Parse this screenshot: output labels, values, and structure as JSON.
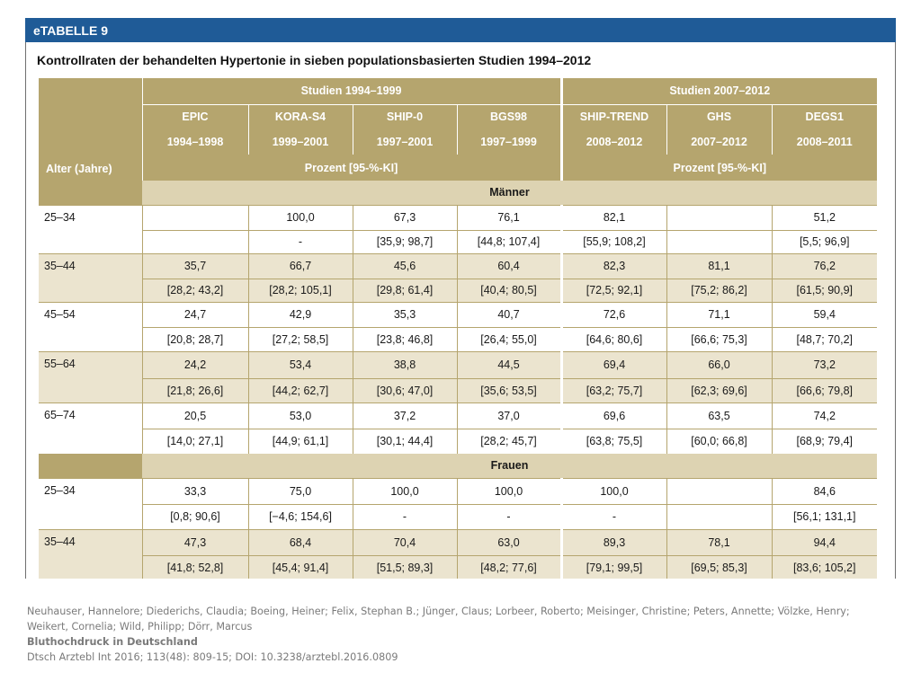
{
  "banner": "eTABELLE 9",
  "title": "Kontrollraten der behandelten Hypertonie in sieben populationsbasierten Studien 1994–2012",
  "header": {
    "age_label": "Alter (Jahre)",
    "group_1": "Studien 1994–1999",
    "group_2": "Studien 2007–2012",
    "unit": "Prozent [95-%-KI]",
    "studies": [
      "EPIC",
      "KORA-S4",
      "SHIP-0",
      "BGS98",
      "SHIP-TREND",
      "GHS",
      "DEGS1"
    ],
    "years": [
      "1994–1998",
      "1999–2001",
      "1997–2001",
      "1997–1999",
      "2008–2012",
      "2007–2012",
      "2008–2011"
    ]
  },
  "sections": [
    {
      "label": "Männer",
      "rows": [
        {
          "age": "25–34",
          "values": [
            "",
            "100,0",
            "67,3",
            "76,1",
            "82,1",
            "",
            "51,2"
          ],
          "ci": [
            "",
            "-",
            "[35,9; 98,7]",
            "[44,8; 107,4]",
            "[55,9; 108,2]",
            "",
            "[5,5; 96,9]"
          ]
        },
        {
          "age": "35–44",
          "values": [
            "35,7",
            "66,7",
            "45,6",
            "60,4",
            "82,3",
            "81,1",
            "76,2"
          ],
          "ci": [
            "[28,2; 43,2]",
            "[28,2; 105,1]",
            "[29,8; 61,4]",
            "[40,4; 80,5]",
            "[72,5; 92,1]",
            "[75,2; 86,2]",
            "[61,5; 90,9]"
          ]
        },
        {
          "age": "45–54",
          "values": [
            "24,7",
            "42,9",
            "35,3",
            "40,7",
            "72,6",
            "71,1",
            "59,4"
          ],
          "ci": [
            "[20,8; 28,7]",
            "[27,2; 58,5]",
            "[23,8; 46,8]",
            "[26,4; 55,0]",
            "[64,6; 80,6]",
            "[66,6; 75,3]",
            "[48,7; 70,2]"
          ]
        },
        {
          "age": "55–64",
          "values": [
            "24,2",
            "53,4",
            "38,8",
            "44,5",
            "69,4",
            "66,0",
            "73,2"
          ],
          "ci": [
            "[21,8; 26,6]",
            "[44,2; 62,7]",
            "[30,6; 47,0]",
            "[35,6; 53,5]",
            "[63,2; 75,7]",
            "[62,3; 69,6]",
            "[66,6; 79,8]"
          ]
        },
        {
          "age": "65–74",
          "values": [
            "20,5",
            "53,0",
            "37,2",
            "37,0",
            "69,6",
            "63,5",
            "74,2"
          ],
          "ci": [
            "[14,0; 27,1]",
            "[44,9; 61,1]",
            "[30,1; 44,4]",
            "[28,2; 45,7]",
            "[63,8; 75,5]",
            "[60,0; 66,8]",
            "[68,9; 79,4]"
          ]
        }
      ]
    },
    {
      "label": "Frauen",
      "rows": [
        {
          "age": "25–34",
          "values": [
            "33,3",
            "75,0",
            "100,0",
            "100,0",
            "100,0",
            "",
            "84,6"
          ],
          "ci": [
            "[0,8; 90,6]",
            "[−4,6; 154,6]",
            "-",
            "-",
            "-",
            "",
            "[56,1; 131,1]"
          ]
        },
        {
          "age": "35–44",
          "values": [
            "47,3",
            "68,4",
            "70,4",
            "63,0",
            "89,3",
            "78,1",
            "94,4"
          ],
          "ci": [
            "[41,8; 52,8]",
            "[45,4; 91,4]",
            "[51,5; 89,3]",
            "[48,2; 77,6]",
            "[79,1; 99,5]",
            "[69,5; 85,3]",
            "[83,6; 105,2]"
          ]
        }
      ]
    }
  ],
  "citation": {
    "authors": "Neuhauser, Hannelore; Diederichs, Claudia; Boeing, Heiner; Felix, Stephan B.; Jünger, Claus; Lorbeer, Roberto; Meisinger, Christine; Peters, Annette; Völzke, Henry; Weikert, Cornelia; Wild, Philipp; Dörr, Marcus",
    "title": "Bluthochdruck in Deutschland",
    "source": "Dtsch Arztebl Int 2016; 113(48): 809-15; DOI: 10.3238/arztebl.2016.0809"
  },
  "colors": {
    "banner": "#1f5b97",
    "header_fill": "#b5a56e",
    "section_fill": "#ddd3b2",
    "row_alt": "#ebe4cf"
  }
}
